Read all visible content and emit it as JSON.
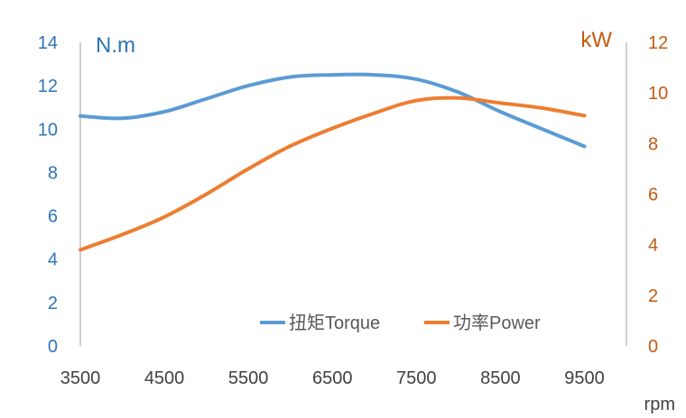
{
  "chart_data": {
    "type": "line",
    "x_unit": "rpm",
    "x_ticks": [
      3500,
      4500,
      5500,
      6500,
      7500,
      8500,
      9500
    ],
    "x_range": [
      3500,
      10000
    ],
    "y_left": {
      "unit": "N.m",
      "range": [
        0,
        14
      ],
      "ticks": [
        0,
        2,
        4,
        6,
        8,
        10,
        12,
        14
      ],
      "color": "#2e75b6"
    },
    "y_right": {
      "unit": "kW",
      "range": [
        0,
        12
      ],
      "ticks": [
        0,
        2,
        4,
        6,
        8,
        10,
        12
      ],
      "color": "#c55a11"
    },
    "series": [
      {
        "name": "扭矩Torque",
        "axis": "left",
        "color": "#5b9bd5",
        "x": [
          3500,
          4000,
          4500,
          5000,
          5500,
          6000,
          6500,
          7000,
          7500,
          8000,
          8500,
          9000,
          9500
        ],
        "values": [
          10.6,
          10.5,
          10.8,
          11.4,
          12.0,
          12.4,
          12.5,
          12.5,
          12.3,
          11.7,
          10.8,
          10.0,
          9.2
        ]
      },
      {
        "name": "功率Power",
        "axis": "right",
        "color": "#ed7d31",
        "x": [
          3500,
          4000,
          4500,
          5000,
          5500,
          6000,
          6500,
          7000,
          7500,
          8000,
          8500,
          9000,
          9500
        ],
        "values": [
          3.8,
          4.4,
          5.1,
          6.0,
          7.0,
          7.9,
          8.6,
          9.2,
          9.7,
          9.8,
          9.6,
          9.4,
          9.1
        ]
      }
    ],
    "legend_position": "bottom-right"
  }
}
